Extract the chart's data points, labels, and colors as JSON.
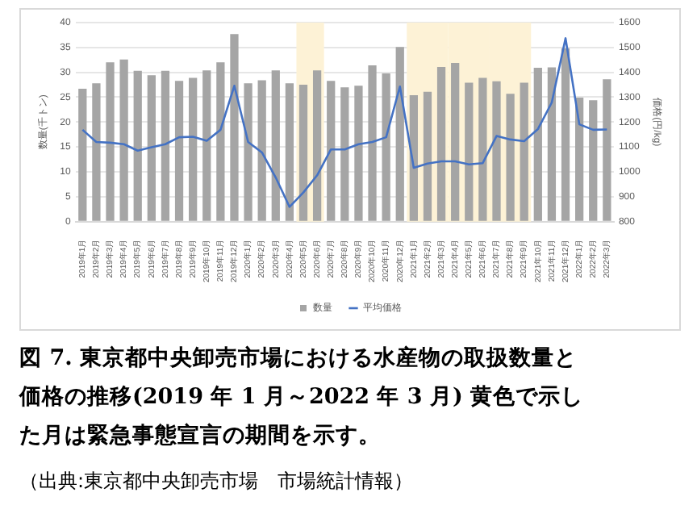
{
  "chart_data": {
    "type": "bar",
    "ylabel": "数量(千トン)",
    "y2label": "価格(円/kg)",
    "categories": [
      "2019年1月",
      "2019年2月",
      "2019年3月",
      "2019年4月",
      "2019年5月",
      "2019年6月",
      "2019年7月",
      "2019年8月",
      "2019年9月",
      "2019年10月",
      "2019年11月",
      "2019年12月",
      "2020年1月",
      "2020年2月",
      "2020年3月",
      "2020年4月",
      "2020年5月",
      "2020年6月",
      "2020年7月",
      "2020年8月",
      "2020年9月",
      "2020年10月",
      "2020年11月",
      "2020年12月",
      "2021年1月",
      "2021年2月",
      "2021年3月",
      "2021年4月",
      "2021年5月",
      "2021年6月",
      "2021年7月",
      "2021年8月",
      "2021年9月",
      "2021年10月",
      "2021年11月",
      "2021年12月",
      "2022年1月",
      "2022年2月",
      "2022年3月"
    ],
    "series": [
      {
        "name": "数量",
        "color": "#a5a5a5",
        "values": [
          26.7,
          27.8,
          32,
          32.6,
          30.3,
          29.4,
          30.3,
          28.3,
          28.9,
          30.4,
          32,
          37.7,
          27.8,
          28.4,
          30.4,
          27.8,
          27.5,
          30.4,
          28.3,
          27,
          27.3,
          31.4,
          29.8,
          35.1,
          25.4,
          26.1,
          31.1,
          31.9,
          27.9,
          28.9,
          28.2,
          25.7,
          27.9,
          30.9,
          31,
          34.8,
          24.9,
          24.4,
          28.6
        ]
      },
      {
        "name": "平均価格",
        "type": "line",
        "axis": "y2",
        "color": "#4472c4",
        "values": [
          1169,
          1120,
          1117,
          1111,
          1085,
          1099,
          1111,
          1139,
          1141,
          1125,
          1169,
          1346,
          1120,
          1078,
          977,
          859,
          917,
          986,
          1090,
          1090,
          1111,
          1120,
          1139,
          1343,
          1016,
          1033,
          1042,
          1042,
          1030,
          1035,
          1144,
          1130,
          1123,
          1172,
          1278,
          1537,
          1191,
          1169,
          1170
        ]
      }
    ],
    "ylim": [
      0,
      40
    ],
    "yticks": [
      0,
      5,
      10,
      15,
      20,
      25,
      30,
      35,
      40
    ],
    "y2lim": [
      800,
      1600
    ],
    "y2ticks": [
      800,
      900,
      1000,
      1100,
      1200,
      1300,
      1400,
      1500,
      1600
    ],
    "bands": [
      {
        "axis": "x",
        "from": "2020年5月",
        "to": "2020年6月",
        "color": "#fdf2d6"
      },
      {
        "axis": "x",
        "from": "2021年1月",
        "to": "2021年3月",
        "color": "#fdf2d6"
      },
      {
        "axis": "x",
        "from": "2021年4月",
        "to": "2021年6月",
        "color": "#fdf2d6"
      },
      {
        "axis": "x",
        "from": "2021年7月",
        "to": "2021年9月",
        "color": "#fdf2d6"
      }
    ],
    "grid": "y",
    "legend": "bottom",
    "marker": "none",
    "annotations": [
      "図 7. 東京都中央卸売市場における水産物の取扱数量と価格の推移(2019 年 1 月～2022 年 3 月)  黄色で示した月は緊急事態宣言の期間を示す。",
      "（出典:東京都中央卸売市場　市場統計情報）"
    ]
  }
}
